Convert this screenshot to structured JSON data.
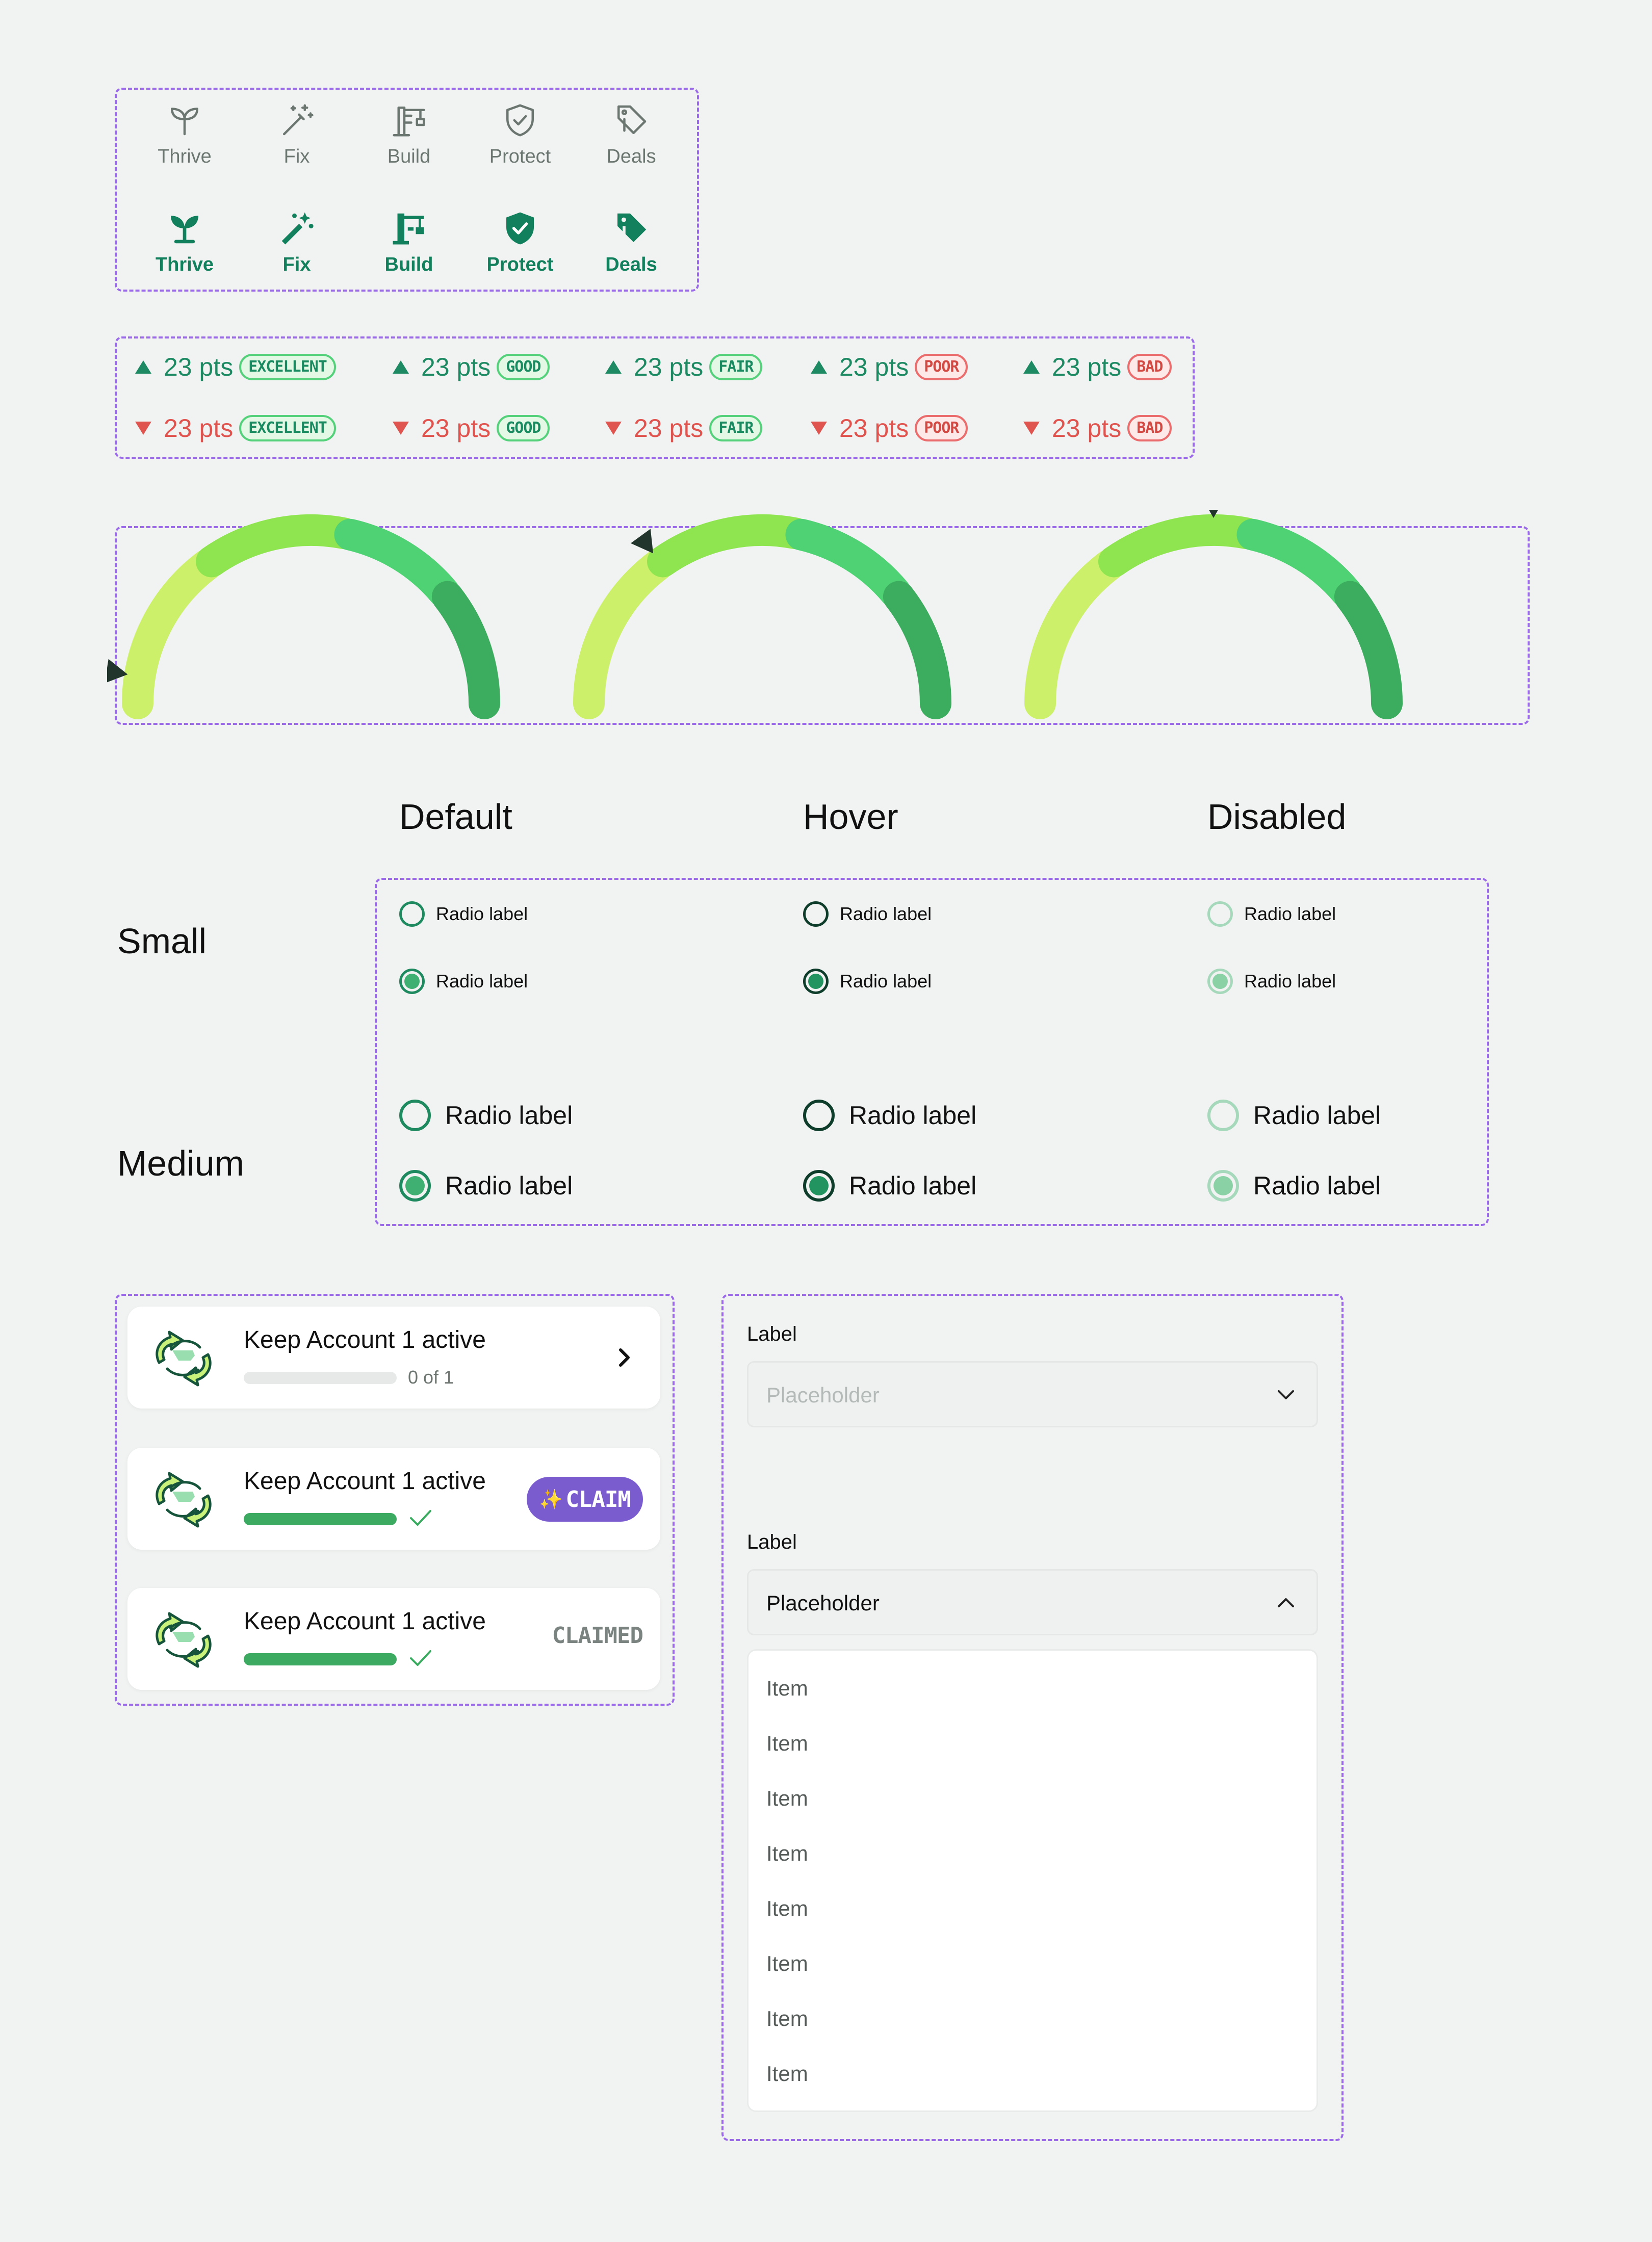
{
  "nav_icons": {
    "outline": [
      {
        "label": "Thrive",
        "icon": "sprout-icon"
      },
      {
        "label": "Fix",
        "icon": "magic-wand-icon"
      },
      {
        "label": "Build",
        "icon": "crane-icon"
      },
      {
        "label": "Protect",
        "icon": "shield-check-icon"
      },
      {
        "label": "Deals",
        "icon": "price-tag-icon"
      }
    ],
    "filled": [
      {
        "label": "Thrive",
        "icon": "sprout-icon"
      },
      {
        "label": "Fix",
        "icon": "magic-wand-icon"
      },
      {
        "label": "Build",
        "icon": "crane-icon"
      },
      {
        "label": "Protect",
        "icon": "shield-check-icon"
      },
      {
        "label": "Deals",
        "icon": "price-tag-icon"
      }
    ]
  },
  "points": {
    "up": [
      {
        "value": "23 pts",
        "badge": "EXCELLENT",
        "tone": "green"
      },
      {
        "value": "23 pts",
        "badge": "GOOD",
        "tone": "green"
      },
      {
        "value": "23 pts",
        "badge": "FAIR",
        "tone": "green"
      },
      {
        "value": "23 pts",
        "badge": "POOR",
        "tone": "red"
      },
      {
        "value": "23 pts",
        "badge": "BAD",
        "tone": "red"
      }
    ],
    "down": [
      {
        "value": "23 pts",
        "badge": "EXCELLENT",
        "tone": "green"
      },
      {
        "value": "23 pts",
        "badge": "GOOD",
        "tone": "green"
      },
      {
        "value": "23 pts",
        "badge": "FAIR",
        "tone": "green"
      },
      {
        "value": "23 pts",
        "badge": "POOR",
        "tone": "red"
      },
      {
        "value": "23 pts",
        "badge": "BAD",
        "tone": "red"
      }
    ]
  },
  "gauges": {
    "segment_colors": [
      "#cdf06a",
      "#8ee54f",
      "#4fd274",
      "#3cac5e"
    ],
    "pointer_positions": [
      0.05,
      0.3,
      0.5
    ]
  },
  "radios": {
    "columns": [
      "Default",
      "Hover",
      "Disabled"
    ],
    "rows": [
      "Small",
      "Medium"
    ],
    "label": "Radio label"
  },
  "tasks": [
    {
      "title": "Keep Account 1 active",
      "progress": 0,
      "progress_text": "0 of 1",
      "action": "chevron"
    },
    {
      "title": "Keep Account 1 active",
      "progress": 1,
      "action_label": "CLAIM",
      "action": "claim"
    },
    {
      "title": "Keep Account 1 active",
      "progress": 1,
      "action_label": "CLAIMED",
      "action": "claimed"
    }
  ],
  "dropdowns": {
    "closed": {
      "label": "Label",
      "placeholder": "Placeholder"
    },
    "open": {
      "label": "Label",
      "placeholder": "Placeholder",
      "items": [
        "Item",
        "Item",
        "Item",
        "Item",
        "Item",
        "Item",
        "Item",
        "Item"
      ]
    }
  }
}
